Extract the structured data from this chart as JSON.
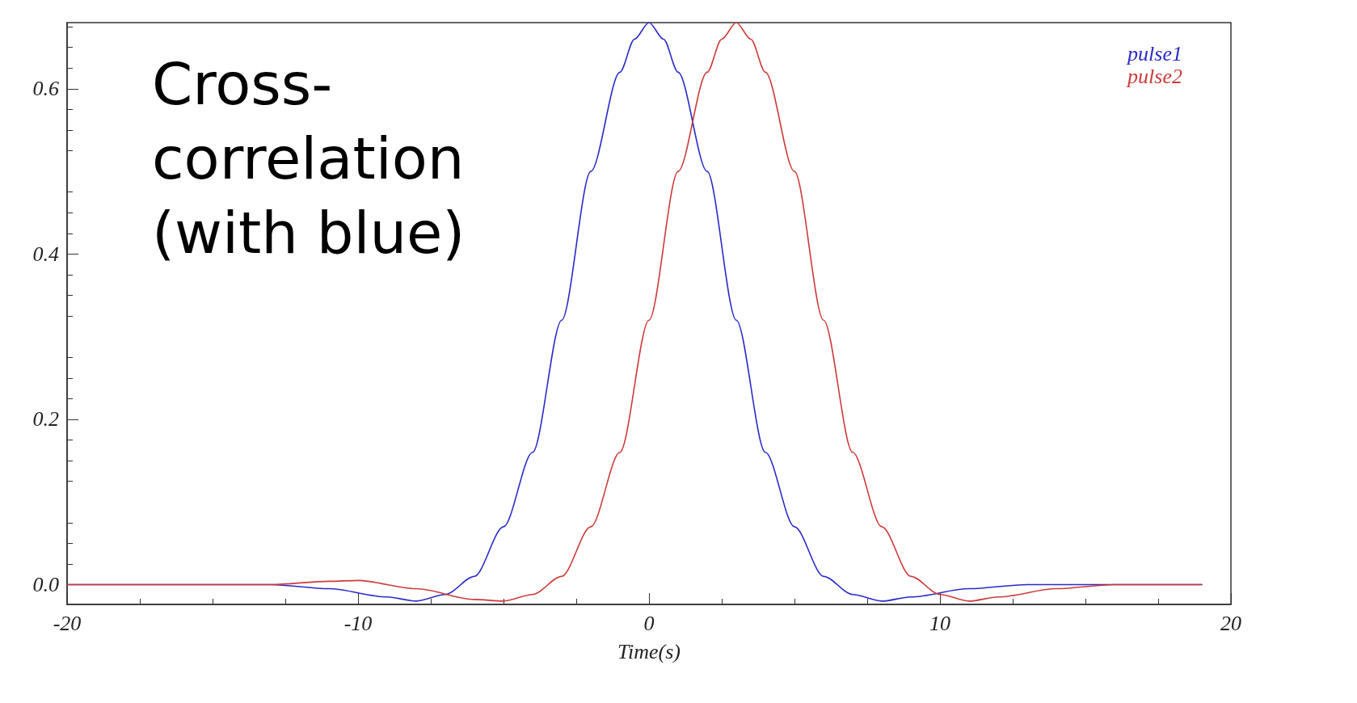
{
  "chart_data": {
    "type": "line",
    "xlabel": "Time(s)",
    "xlim": [
      -20,
      20
    ],
    "xticks": [
      -20,
      -10,
      0,
      10,
      20
    ],
    "ylim": [
      -0.024,
      0.68
    ],
    "yticks": [
      {
        "value": 0,
        "label": "0.0"
      },
      0.2,
      0.4,
      0.6
    ],
    "legend": "top right",
    "marker": "none",
    "line_style": "solid",
    "annotations": [
      "Cross-\ncorrelation\n(with blue)"
    ],
    "series": [
      {
        "name": "pulse1",
        "color": "#2a2ac8",
        "x": [
          -20,
          -16,
          -13,
          -11,
          -9,
          -8,
          -7,
          -6,
          -5,
          -4,
          -3,
          -2,
          -1,
          -0.5,
          0,
          0.5,
          1,
          2,
          3,
          4,
          5,
          6,
          7,
          8,
          9,
          11,
          13,
          16,
          19
        ],
        "values": [
          0,
          0,
          0,
          -0.005,
          -0.015,
          -0.02,
          -0.012,
          0.01,
          0.07,
          0.16,
          0.32,
          0.5,
          0.62,
          0.66,
          0.68,
          0.66,
          0.62,
          0.5,
          0.32,
          0.16,
          0.07,
          0.01,
          -0.012,
          -0.02,
          -0.015,
          -0.005,
          0,
          0,
          0
        ]
      },
      {
        "name": "pulse2",
        "color": "#cc3a3a",
        "x": [
          -20,
          -16,
          -13,
          -11,
          -10,
          -8,
          -6,
          -5,
          -4,
          -3,
          -2,
          -1,
          0,
          1,
          2,
          2.5,
          3,
          3.5,
          4,
          5,
          6,
          7,
          8,
          9,
          10,
          11,
          12,
          14,
          16,
          19
        ],
        "values": [
          0,
          0,
          0,
          0.004,
          0.005,
          -0.005,
          -0.018,
          -0.02,
          -0.012,
          0.01,
          0.07,
          0.16,
          0.32,
          0.5,
          0.62,
          0.66,
          0.68,
          0.66,
          0.62,
          0.5,
          0.32,
          0.16,
          0.07,
          0.01,
          -0.012,
          -0.02,
          -0.015,
          -0.005,
          0,
          0
        ]
      }
    ]
  }
}
